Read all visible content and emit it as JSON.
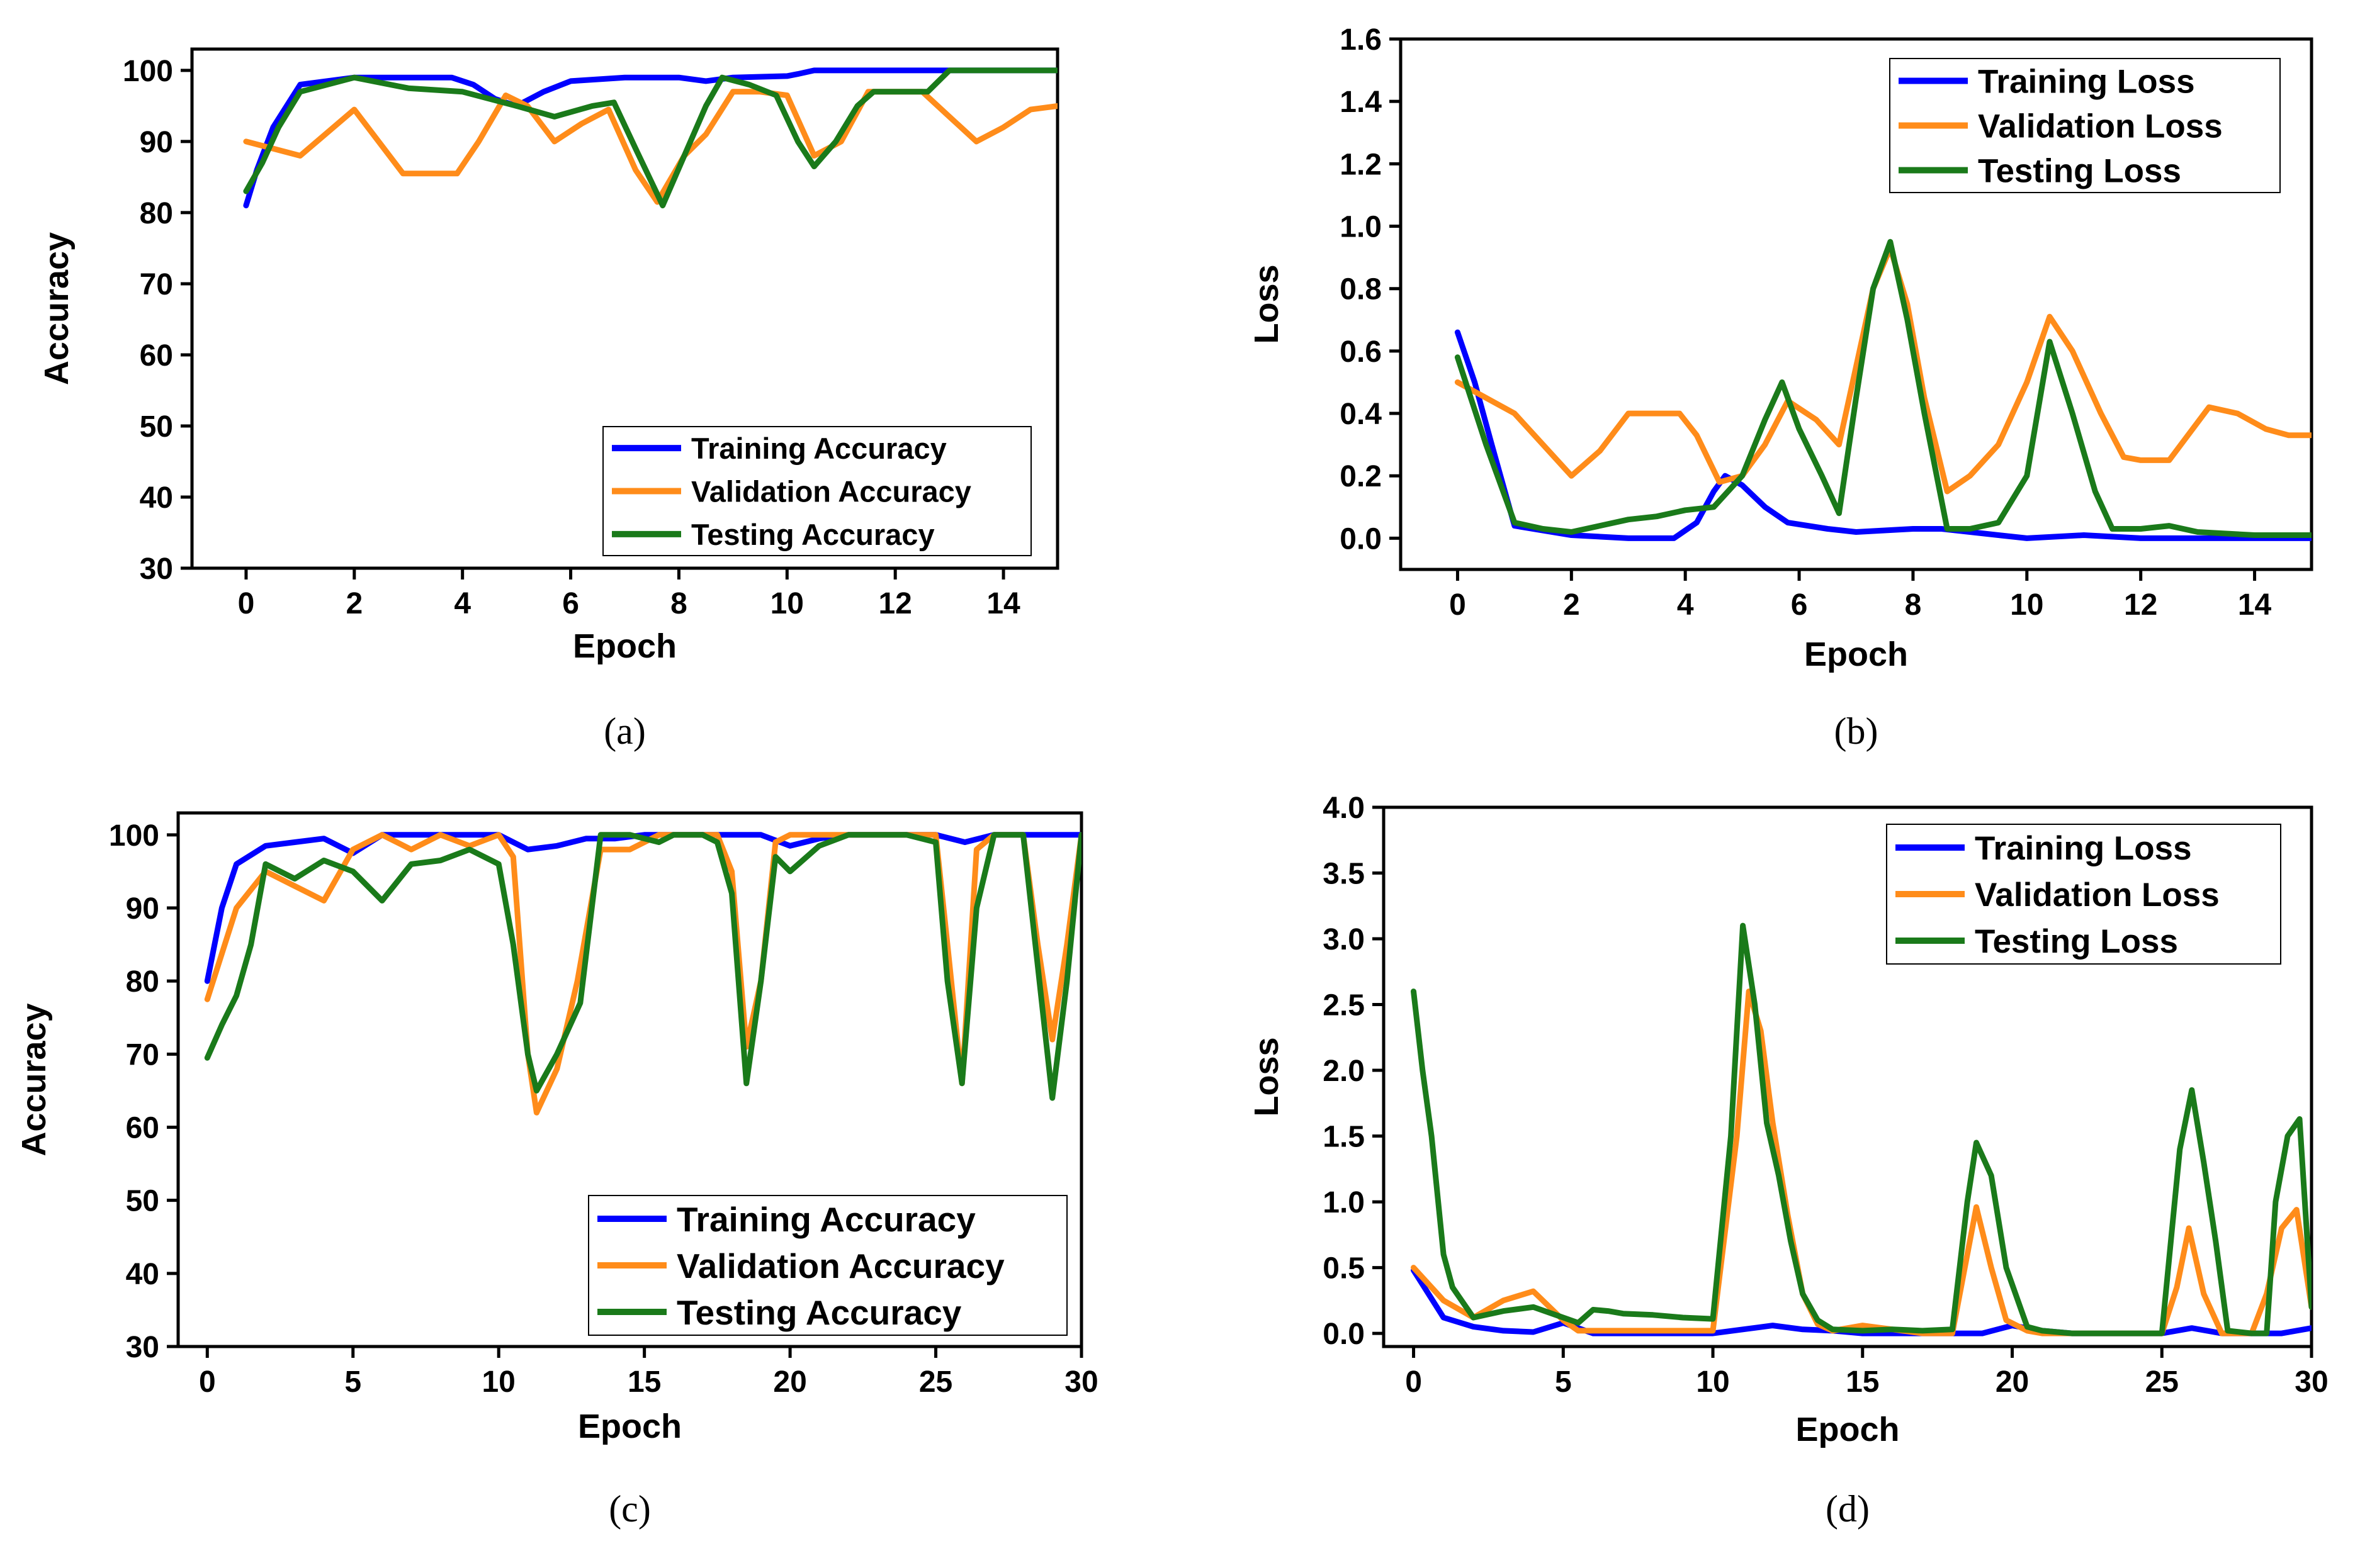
{
  "colors": {
    "training": "#0000ff",
    "validation": "#ff8c1a",
    "testing": "#1a7a1a"
  },
  "chart_data": [
    {
      "id": "a",
      "type": "line",
      "caption": "(a)",
      "xlabel": "Epoch",
      "ylabel": "Accuracy",
      "xlim": [
        -1,
        15
      ],
      "ylim": [
        30,
        103
      ],
      "xticks": [
        0,
        2,
        4,
        6,
        8,
        10,
        12,
        14
      ],
      "yticks": [
        30,
        40,
        50,
        60,
        70,
        80,
        90,
        100
      ],
      "legend_position": "bottom-right",
      "series": [
        {
          "name": "Training Accuracy",
          "color_key": "training",
          "x": [
            0,
            0.2,
            0.5,
            1,
            2,
            3,
            3.8,
            4.2,
            4.6,
            5,
            5.5,
            6,
            7,
            8,
            8.5,
            9,
            10,
            10.2,
            10.5,
            11,
            12,
            12.5,
            13,
            14,
            15
          ],
          "y": [
            81,
            86,
            92,
            98,
            99,
            99,
            99,
            98,
            96,
            95,
            97,
            98.5,
            99,
            99,
            98.5,
            99,
            99.2,
            99.5,
            100,
            100,
            100,
            100,
            100,
            100,
            100
          ]
        },
        {
          "name": "Validation Accuracy",
          "color_key": "validation",
          "x": [
            0,
            1,
            2,
            2.9,
            3.5,
            3.9,
            4.3,
            4.8,
            5.2,
            5.7,
            6.2,
            6.7,
            7.2,
            7.6,
            8.1,
            8.5,
            9,
            9.5,
            10,
            10.5,
            11,
            11.5,
            12,
            12.5,
            13,
            13.5,
            14,
            14.5,
            15
          ],
          "y": [
            90,
            88,
            94.5,
            85.5,
            85.5,
            85.5,
            90,
            96.5,
            95,
            90,
            92.5,
            94.5,
            86,
            81.5,
            88,
            91,
            97,
            97,
            96.5,
            88,
            90,
            97,
            97,
            97,
            93.5,
            90,
            92,
            94.5,
            95
          ]
        },
        {
          "name": "Testing Accuracy",
          "color_key": "testing",
          "x": [
            0,
            0.3,
            0.6,
            1,
            2,
            3,
            4,
            5,
            5.7,
            6.4,
            6.8,
            7.2,
            7.7,
            8.1,
            8.5,
            8.8,
            9.3,
            9.8,
            10.2,
            10.5,
            10.9,
            11.3,
            11.6,
            12,
            12.6,
            13,
            14,
            15
          ],
          "y": [
            83,
            87,
            92,
            97,
            99,
            97.5,
            97,
            95,
            93.5,
            95,
            95.5,
            89,
            81,
            88,
            95,
            99,
            98,
            96.5,
            90,
            86.5,
            90,
            95,
            97,
            97,
            97,
            100,
            100,
            100
          ]
        }
      ]
    },
    {
      "id": "b",
      "type": "line",
      "caption": "(b)",
      "xlabel": "Epoch",
      "ylabel": "Loss",
      "xlim": [
        -1,
        15
      ],
      "ylim": [
        -0.1,
        1.6
      ],
      "xticks": [
        0,
        2,
        4,
        6,
        8,
        10,
        12,
        14
      ],
      "yticks": [
        0.0,
        0.2,
        0.4,
        0.6,
        0.8,
        1.0,
        1.2,
        1.4,
        1.6
      ],
      "ytick_labels": [
        "0.0",
        "0.2",
        "0.4",
        "0.6",
        "0.8",
        "1.0",
        "1.2",
        "1.4",
        "1.6"
      ],
      "legend_position": "top-right",
      "series": [
        {
          "name": "Training Loss",
          "color_key": "training",
          "x": [
            0,
            0.3,
            0.6,
            1,
            2,
            3,
            3.8,
            4.2,
            4.5,
            4.7,
            5,
            5.4,
            5.8,
            6.5,
            7,
            8,
            8.5,
            9,
            9.5,
            10,
            11,
            12,
            13,
            14,
            15
          ],
          "y": [
            0.66,
            0.5,
            0.3,
            0.04,
            0.01,
            0.0,
            0.0,
            0.05,
            0.15,
            0.2,
            0.17,
            0.1,
            0.05,
            0.03,
            0.02,
            0.03,
            0.03,
            0.02,
            0.01,
            0.0,
            0.01,
            0.0,
            0.0,
            0.0,
            0.0
          ]
        },
        {
          "name": "Validation Loss",
          "color_key": "validation",
          "x": [
            0,
            1,
            1.5,
            2,
            2.5,
            3,
            3.5,
            3.9,
            4.2,
            4.6,
            5,
            5.4,
            5.8,
            6.3,
            6.7,
            7,
            7.3,
            7.6,
            7.9,
            8.2,
            8.6,
            9,
            9.5,
            10,
            10.4,
            10.8,
            11.3,
            11.7,
            12,
            12.5,
            13.2,
            13.7,
            14.2,
            14.6,
            15
          ],
          "y": [
            0.5,
            0.4,
            0.3,
            0.2,
            0.28,
            0.4,
            0.4,
            0.4,
            0.33,
            0.18,
            0.2,
            0.3,
            0.44,
            0.38,
            0.3,
            0.55,
            0.8,
            0.93,
            0.75,
            0.45,
            0.15,
            0.2,
            0.3,
            0.5,
            0.71,
            0.6,
            0.4,
            0.26,
            0.25,
            0.25,
            0.42,
            0.4,
            0.35,
            0.33,
            0.33
          ]
        },
        {
          "name": "Testing Loss",
          "color_key": "testing",
          "x": [
            0,
            0.5,
            1,
            1.5,
            2,
            2.5,
            3,
            3.5,
            4,
            4.5,
            5,
            5.4,
            5.7,
            6,
            6.4,
            6.7,
            7,
            7.3,
            7.6,
            7.9,
            8.2,
            8.6,
            9,
            9.5,
            10,
            10.4,
            10.8,
            11.2,
            11.5,
            12,
            12.5,
            13,
            14,
            15
          ],
          "y": [
            0.58,
            0.3,
            0.05,
            0.03,
            0.02,
            0.04,
            0.06,
            0.07,
            0.09,
            0.1,
            0.2,
            0.38,
            0.5,
            0.35,
            0.2,
            0.08,
            0.45,
            0.8,
            0.95,
            0.7,
            0.4,
            0.03,
            0.03,
            0.05,
            0.2,
            0.63,
            0.4,
            0.15,
            0.03,
            0.03,
            0.04,
            0.02,
            0.01,
            0.01
          ]
        }
      ]
    },
    {
      "id": "c",
      "type": "line",
      "caption": "(c)",
      "xlabel": "Epoch",
      "ylabel": "Accuracy",
      "xlim": [
        -1,
        30
      ],
      "ylim": [
        30,
        103
      ],
      "xticks": [
        0,
        5,
        10,
        15,
        20,
        25,
        30
      ],
      "yticks": [
        30,
        40,
        50,
        60,
        70,
        80,
        90,
        100
      ],
      "legend_position": "bottom-right",
      "series": [
        {
          "name": "Training Accuracy",
          "color_key": "training",
          "x": [
            0,
            0.5,
            1,
            2,
            3,
            4,
            5,
            6,
            7,
            8,
            9,
            10,
            11,
            12,
            13,
            14,
            15,
            16,
            17,
            18,
            19,
            20,
            21,
            22,
            23,
            24,
            25,
            26,
            27,
            28,
            29,
            30
          ],
          "y": [
            80,
            90,
            96,
            98.5,
            99,
            99.5,
            97.5,
            100,
            100,
            100,
            100,
            100,
            98,
            98.5,
            99.5,
            99.5,
            100,
            100,
            100,
            100,
            100,
            98.5,
            99.5,
            100,
            100,
            100,
            100,
            99,
            100,
            100,
            100,
            100
          ]
        },
        {
          "name": "Validation Accuracy",
          "color_key": "validation",
          "x": [
            0,
            1,
            2,
            3,
            4,
            5,
            6,
            7,
            8,
            9,
            10,
            10.5,
            11,
            11.3,
            12,
            12.7,
            13.5,
            14.5,
            15.5,
            16,
            17,
            17.5,
            18,
            18.5,
            19,
            19.5,
            20,
            21,
            22,
            23,
            24,
            25,
            25.4,
            25.9,
            26.4,
            27,
            28,
            28.5,
            29,
            29.5,
            30
          ],
          "y": [
            77.5,
            90,
            95,
            93,
            91,
            98,
            100,
            98,
            100,
            98.5,
            100,
            97,
            70,
            62,
            68,
            80,
            98,
            98,
            100,
            100,
            100,
            100,
            95,
            71,
            80,
            99,
            100,
            100,
            100,
            100,
            100,
            100,
            85,
            66,
            98,
            100,
            100,
            85,
            72,
            85,
            100
          ]
        },
        {
          "name": "Testing Accuracy",
          "color_key": "testing",
          "x": [
            0,
            0.5,
            1,
            1.5,
            2,
            3,
            4,
            5,
            6,
            7,
            8,
            9,
            10,
            10.5,
            11,
            11.3,
            12,
            12.8,
            13.5,
            14.5,
            15.5,
            16,
            17,
            17.5,
            18,
            18.5,
            19,
            19.5,
            20,
            21,
            22,
            23,
            24,
            25,
            25.4,
            25.9,
            26.4,
            27,
            28,
            28.5,
            29,
            29.5,
            30
          ],
          "y": [
            69.5,
            74,
            78,
            85,
            96,
            94,
            96.5,
            95,
            91,
            96,
            96.5,
            98,
            96,
            85,
            70,
            65,
            70,
            77,
            100,
            100,
            99,
            100,
            100,
            99,
            92,
            66,
            80,
            97,
            95,
            98.5,
            100,
            100,
            100,
            99,
            80,
            66,
            90,
            100,
            100,
            82,
            64,
            80,
            100
          ]
        }
      ]
    },
    {
      "id": "d",
      "type": "line",
      "caption": "(d)",
      "xlabel": "Epoch",
      "ylabel": "Loss",
      "xlim": [
        -1,
        30
      ],
      "ylim": [
        -0.1,
        4.0
      ],
      "xticks": [
        0,
        5,
        10,
        15,
        20,
        25,
        30
      ],
      "yticks": [
        0.0,
        0.5,
        1.0,
        1.5,
        2.0,
        2.5,
        3.0,
        3.5,
        4.0
      ],
      "ytick_labels": [
        "0.0",
        "0.5",
        "1.0",
        "1.5",
        "2.0",
        "2.5",
        "3.0",
        "3.5",
        "4.0"
      ],
      "legend_position": "top-right",
      "series": [
        {
          "name": "Training Loss",
          "color_key": "training",
          "x": [
            0,
            1,
            2,
            3,
            4,
            5,
            6,
            7,
            8,
            9,
            10,
            11,
            12,
            13,
            14,
            15,
            16,
            17,
            18,
            19,
            20,
            21,
            22,
            23,
            24,
            25,
            26,
            27,
            28,
            29,
            30
          ],
          "y": [
            0.48,
            0.12,
            0.05,
            0.02,
            0.01,
            0.08,
            0.0,
            0.0,
            0.0,
            0.0,
            0.0,
            0.03,
            0.06,
            0.03,
            0.02,
            0.0,
            0.0,
            0.0,
            0.0,
            0.0,
            0.06,
            0.02,
            0.0,
            0.0,
            0.0,
            0.0,
            0.04,
            0.0,
            0.0,
            0.0,
            0.04
          ]
        },
        {
          "name": "Validation Loss",
          "color_key": "validation",
          "x": [
            0,
            1,
            2,
            3,
            4,
            5,
            5.5,
            6,
            7,
            8,
            9,
            10,
            10.8,
            11.2,
            11.6,
            12,
            12.5,
            13,
            13.5,
            14,
            15,
            16,
            17,
            18,
            18.8,
            19.3,
            19.8,
            20.5,
            21,
            22,
            23,
            24,
            25,
            25.5,
            25.9,
            26.4,
            27,
            28,
            28.5,
            29,
            29.5,
            30
          ],
          "y": [
            0.5,
            0.25,
            0.12,
            0.25,
            0.32,
            0.1,
            0.02,
            0.02,
            0.02,
            0.02,
            0.02,
            0.02,
            1.5,
            2.6,
            2.3,
            1.6,
            0.9,
            0.3,
            0.07,
            0.02,
            0.06,
            0.03,
            0.0,
            0.0,
            0.96,
            0.5,
            0.1,
            0.02,
            0.0,
            0.0,
            0.0,
            0.0,
            0.0,
            0.35,
            0.8,
            0.3,
            0.0,
            0.0,
            0.3,
            0.8,
            0.94,
            0.2
          ]
        },
        {
          "name": "Testing Loss",
          "color_key": "testing",
          "x": [
            0,
            0.3,
            0.6,
            1,
            1.3,
            2,
            3,
            4,
            5,
            5.5,
            6,
            6.5,
            7,
            8,
            9,
            10,
            10.6,
            11,
            11.4,
            11.8,
            12.2,
            12.6,
            13,
            13.5,
            14,
            15,
            16,
            17,
            18,
            18.5,
            18.8,
            19.3,
            19.8,
            20.5,
            21,
            22,
            23,
            24,
            25,
            25.3,
            25.6,
            26,
            26.4,
            26.8,
            27.2,
            28,
            28.5,
            28.8,
            29.2,
            29.6,
            30
          ],
          "y": [
            2.6,
            2.0,
            1.5,
            0.6,
            0.35,
            0.12,
            0.17,
            0.2,
            0.12,
            0.08,
            0.18,
            0.17,
            0.15,
            0.14,
            0.12,
            0.11,
            1.5,
            3.1,
            2.5,
            1.6,
            1.2,
            0.7,
            0.3,
            0.1,
            0.03,
            0.02,
            0.03,
            0.02,
            0.03,
            1.0,
            1.45,
            1.2,
            0.5,
            0.05,
            0.02,
            0.0,
            0.0,
            0.0,
            0.0,
            0.7,
            1.4,
            1.85,
            1.3,
            0.7,
            0.02,
            0.0,
            0.0,
            1.0,
            1.5,
            1.63,
            0.2
          ]
        }
      ]
    }
  ]
}
